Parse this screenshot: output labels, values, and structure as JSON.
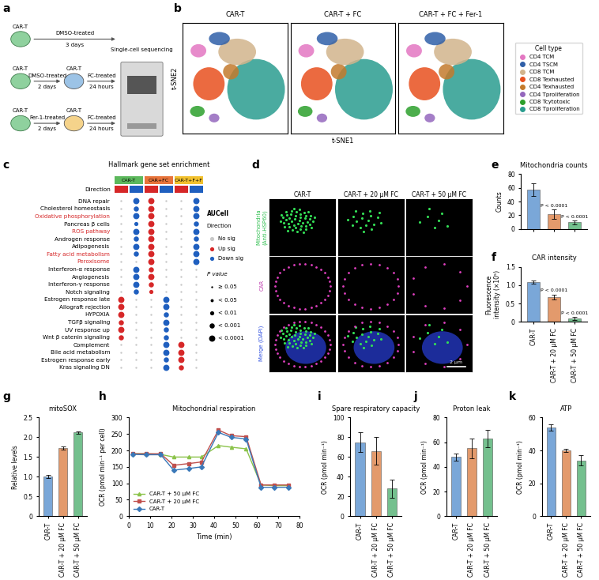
{
  "schematic": {
    "panel": "a",
    "rows": [
      {
        "start": "CAR-T",
        "first": {
          "treatment": "DMSO-treated",
          "duration": "3 days"
        }
      },
      {
        "start": "CAR-T",
        "first": {
          "treatment": "DMSO-treated",
          "duration": "2 days"
        },
        "middle": "CAR-T",
        "second": {
          "treatment": "FC-treated",
          "duration": "24 hours"
        }
      },
      {
        "start": "CAR-T",
        "first": {
          "treatment": "Fer-1-treated",
          "duration": "2 days"
        },
        "middle": "CAR-T",
        "second": {
          "treatment": "FC-treated",
          "duration": "24 hours"
        }
      }
    ],
    "output": "Single-cell sequencing"
  },
  "tsne": {
    "panel": "b",
    "type": "scatter",
    "titles": [
      "CAR-T",
      "CAR-T + FC",
      "CAR-T + FC + Fer-1"
    ],
    "xlabel": "t-SNE1",
    "ylabel": "t-SNE2",
    "xlim": [
      -50,
      50
    ],
    "ylim": [
      -50,
      50
    ],
    "tick_labels": false,
    "legend_title": "Cell type",
    "clusters": [
      {
        "name": "CD4 TCM",
        "color": "#e377c2",
        "x": -35,
        "y": 25,
        "width": 15,
        "height": 12
      },
      {
        "name": "CD4 TSCM",
        "color": "#2f5fa8",
        "x": -15,
        "y": 36,
        "width": 20,
        "height": 12
      },
      {
        "name": "CD8 TCM",
        "color": "#d2b48c",
        "x": 2,
        "y": 24,
        "width": 36,
        "height": 24
      },
      {
        "name": "CD8 Texhausted",
        "color": "#e8501e",
        "x": -25,
        "y": -5,
        "width": 30,
        "height": 30
      },
      {
        "name": "CD4 Texhausted",
        "color": "#c47a2c",
        "x": -4,
        "y": 6,
        "width": 15,
        "height": 14
      },
      {
        "name": "CD4 Tproliferation",
        "color": "#9467bd",
        "x": -20,
        "y": -36,
        "width": 10,
        "height": 8
      },
      {
        "name": "CD8 Tcytotoxic",
        "color": "#2ca02c",
        "x": -36,
        "y": -30,
        "width": 14,
        "height": 10
      },
      {
        "name": "CD8 Tproliferation",
        "color": "#2a9d8f",
        "x": 20,
        "y": -10,
        "width": 55,
        "height": 55
      }
    ]
  },
  "dot_plot": {
    "panel": "c",
    "title": "Hallmark gene set enrichment",
    "groups": [
      {
        "name": "CAR-T",
        "color": "#5cb85c"
      },
      {
        "name": "CAR+FC",
        "color": "#e8743b"
      },
      {
        "name": "CAR-T+F+F",
        "color": "#f2c12e"
      }
    ],
    "direction_label": "Direction",
    "column_directions": [
      1,
      2,
      1,
      2,
      1,
      2
    ],
    "legend_title": "AUCell",
    "directions": [
      {
        "name": "No sig",
        "color": "#c8c8c8"
      },
      {
        "name": "Up sig",
        "color": "#d62728"
      },
      {
        "name": "Down sig",
        "color": "#1f5fbf"
      }
    ],
    "p_value_title": "P value",
    "p_levels": [
      "≥ 0.05",
      "< 0.05",
      "< 0.01",
      "< 0.001",
      "< 0.0001"
    ],
    "rows": [
      {
        "label": "DNA repair",
        "color": "#000000"
      },
      {
        "label": "Cholesterol homeostasis",
        "color": "#000000"
      },
      {
        "label": "Oxidative phosphorylation",
        "color": "#d62728"
      },
      {
        "label": "Pancreas β cells",
        "color": "#000000"
      },
      {
        "label": "ROS pathway",
        "color": "#d62728"
      },
      {
        "label": "Androgen response",
        "color": "#000000"
      },
      {
        "label": "Adipogenesis",
        "color": "#000000"
      },
      {
        "label": "Fatty acid metabolism",
        "color": "#d62728"
      },
      {
        "label": "Peroxisome",
        "color": "#d62728"
      },
      {
        "label": "Interferon-α response",
        "color": "#000000"
      },
      {
        "label": "Angiogenesis",
        "color": "#000000"
      },
      {
        "label": "Interferon-γ response",
        "color": "#000000"
      },
      {
        "label": "Notch signaling",
        "color": "#000000"
      },
      {
        "label": "Estrogen response late",
        "color": "#000000"
      },
      {
        "label": "Allograft rejection",
        "color": "#000000"
      },
      {
        "label": "HYPOXIA",
        "color": "#000000"
      },
      {
        "label": "TGFβ signaling",
        "color": "#000000"
      },
      {
        "label": "UV response up",
        "color": "#000000"
      },
      {
        "label": "Wnt β catenin signaling",
        "color": "#000000"
      },
      {
        "label": "Complement",
        "color": "#000000"
      },
      {
        "label": "Bile acid metabolism",
        "color": "#000000"
      },
      {
        "label": "Estrogen response early",
        "color": "#000000"
      },
      {
        "label": "Kras signaling DN",
        "color": "#000000"
      }
    ],
    "cell_directions": [
      [
        0,
        2,
        1,
        0,
        0,
        2
      ],
      [
        0,
        2,
        1,
        0,
        0,
        2
      ],
      [
        0,
        2,
        1,
        0,
        0,
        2
      ],
      [
        0,
        2,
        1,
        0,
        0,
        2
      ],
      [
        0,
        2,
        1,
        0,
        0,
        2
      ],
      [
        0,
        2,
        1,
        0,
        0,
        2
      ],
      [
        0,
        2,
        1,
        0,
        0,
        2
      ],
      [
        0,
        2,
        1,
        0,
        0,
        2
      ],
      [
        0,
        0,
        1,
        0,
        0,
        2
      ],
      [
        0,
        2,
        1,
        0,
        0,
        0
      ],
      [
        0,
        2,
        1,
        0,
        0,
        0
      ],
      [
        0,
        2,
        1,
        0,
        0,
        0
      ],
      [
        0,
        2,
        1,
        0,
        0,
        0
      ],
      [
        1,
        0,
        0,
        2,
        0,
        0
      ],
      [
        1,
        0,
        0,
        2,
        0,
        0
      ],
      [
        1,
        0,
        0,
        2,
        0,
        0
      ],
      [
        1,
        0,
        0,
        2,
        0,
        0
      ],
      [
        1,
        0,
        0,
        2,
        0,
        0
      ],
      [
        1,
        0,
        0,
        2,
        0,
        0
      ],
      [
        0,
        0,
        0,
        2,
        1,
        0
      ],
      [
        0,
        0,
        0,
        2,
        1,
        0
      ],
      [
        0,
        0,
        0,
        2,
        1,
        0
      ],
      [
        0,
        0,
        0,
        2,
        1,
        0
      ]
    ],
    "cell_p_levels": [
      [
        0,
        4,
        4,
        0,
        0,
        4
      ],
      [
        0,
        3,
        4,
        0,
        0,
        4
      ],
      [
        0,
        4,
        4,
        0,
        0,
        4
      ],
      [
        0,
        2,
        4,
        0,
        0,
        3
      ],
      [
        0,
        4,
        4,
        0,
        0,
        4
      ],
      [
        0,
        3,
        4,
        0,
        0,
        3
      ],
      [
        0,
        4,
        4,
        0,
        0,
        4
      ],
      [
        0,
        3,
        4,
        0,
        0,
        4
      ],
      [
        0,
        0,
        4,
        0,
        0,
        4
      ],
      [
        0,
        4,
        3,
        0,
        0,
        0
      ],
      [
        0,
        4,
        4,
        0,
        0,
        0
      ],
      [
        0,
        4,
        3,
        0,
        0,
        0
      ],
      [
        0,
        3,
        2,
        0,
        0,
        0
      ],
      [
        4,
        0,
        0,
        4,
        0,
        0
      ],
      [
        4,
        0,
        0,
        4,
        0,
        0
      ],
      [
        4,
        0,
        0,
        3,
        0,
        0
      ],
      [
        3,
        0,
        0,
        4,
        0,
        0
      ],
      [
        4,
        0,
        0,
        3,
        0,
        0
      ],
      [
        3,
        0,
        0,
        3,
        0,
        0
      ],
      [
        0,
        0,
        0,
        4,
        4,
        0
      ],
      [
        0,
        0,
        0,
        4,
        4,
        0
      ],
      [
        0,
        0,
        0,
        3,
        4,
        0
      ],
      [
        0,
        0,
        0,
        4,
        3,
        0
      ]
    ]
  },
  "microscopy": {
    "panel": "d",
    "columns": [
      "CAR-T",
      "CAR-T + 20 μM FC",
      "CAR-T + 50 μM FC"
    ],
    "rows": [
      {
        "label": "Mitochondria\n(Anti-HSP60)",
        "color": "#2fbf4f"
      },
      {
        "label": "CAR",
        "color": "#c040b0"
      },
      {
        "label": "Merge (DAPI)",
        "color": "#3050e0"
      }
    ],
    "scale_bar": "2 μm"
  },
  "chart_data": [
    {
      "panel": "e",
      "type": "bar",
      "title": "Mitochondria counts",
      "ylabel": "Counts",
      "categories": [
        "CAR-T",
        "CAR-T + 20 μM FC",
        "CAR-T + 50 μM FC"
      ],
      "values": [
        57,
        22,
        10
      ],
      "errors": [
        9,
        7,
        3
      ],
      "colors": [
        "#7aa7d8",
        "#e39a6c",
        "#74c08e"
      ],
      "ylim": [
        0,
        80
      ],
      "yticks": [
        0,
        20,
        40,
        60,
        80
      ],
      "tick_labels": "y",
      "annotations": [
        null,
        "P < 0.0001",
        "P < 0.0001"
      ]
    },
    {
      "panel": "f",
      "type": "bar",
      "title": "CAR intensity",
      "ylabel": "Fluorescence\nintensity (×10⁵)",
      "categories": [
        "CAR-T",
        "CAR-T + 20 μM FC",
        "CAR-T + 50 μM FC"
      ],
      "values": [
        1.08,
        0.68,
        0.1
      ],
      "errors": [
        0.05,
        0.07,
        0.04
      ],
      "colors": [
        "#7aa7d8",
        "#e39a6c",
        "#74c08e"
      ],
      "ylim": [
        0,
        1.5
      ],
      "yticks": [
        0,
        0.5,
        {
          "value": 1,
          "label": "1.0"
        },
        1.5
      ],
      "annotations": [
        null,
        "P < 0.0001",
        "P < 0.0001"
      ]
    },
    {
      "panel": "g",
      "type": "bar",
      "title": "mitoSOX",
      "ylabel": "Relative levels",
      "categories": [
        "CAR-T",
        "CAR-T + 20 μM FC",
        "CAR-T + 50 μM FC"
      ],
      "values": [
        1.0,
        1.72,
        2.12
      ],
      "errors": [
        0.04,
        0.04,
        0.03
      ],
      "colors": [
        "#7aa7d8",
        "#e39a6c",
        "#74c08e"
      ],
      "ylim": [
        0,
        2.5
      ],
      "yticks": [
        0,
        0.5,
        {
          "value": 1,
          "label": "1.0"
        },
        1.5,
        {
          "value": 2,
          "label": "2.0"
        },
        2.5
      ]
    },
    {
      "panel": "h",
      "type": "line",
      "title": "Mitochondrial respiration",
      "xlabel": "Time (min)",
      "ylabel": "OCR (pmol min⁻¹ per cell)",
      "x": [
        2,
        8,
        15,
        21,
        28,
        34,
        42,
        48,
        55,
        62,
        68,
        75
      ],
      "series": [
        {
          "name": "CAR-T + 50 μM FC",
          "color": "#8bc34a",
          "marker": "triangle",
          "values": [
            190,
            190,
            188,
            180,
            180,
            180,
            215,
            210,
            205,
            95,
            93,
            93
          ]
        },
        {
          "name": "CAR-T + 20 μM FC",
          "color": "#c0504d",
          "marker": "square",
          "values": [
            190,
            190,
            190,
            155,
            160,
            165,
            262,
            245,
            242,
            95,
            95,
            95
          ]
        },
        {
          "name": "CAR-T",
          "color": "#3a78b8",
          "marker": "diamond",
          "values": [
            188,
            187,
            187,
            140,
            145,
            150,
            255,
            240,
            235,
            88,
            88,
            88
          ]
        }
      ],
      "xlim": [
        0,
        80
      ],
      "xticks": [
        0,
        10,
        20,
        30,
        40,
        50,
        60,
        70,
        80
      ],
      "ylim": [
        0,
        300
      ],
      "yticks": [
        0,
        50,
        100,
        150,
        200,
        250,
        300
      ],
      "legend": "lower left"
    },
    {
      "panel": "i",
      "type": "bar",
      "title": "Spare respiratory capacity",
      "ylabel": "OCR (pmol min⁻¹)",
      "categories": [
        "CAR-T",
        "CAR-T + 20 μM FC",
        "CAR-T + 50 μM FC"
      ],
      "values": [
        75,
        66,
        28
      ],
      "errors": [
        10,
        14,
        9
      ],
      "colors": [
        "#7aa7d8",
        "#e39a6c",
        "#74c08e"
      ],
      "ylim": [
        0,
        100
      ],
      "yticks": [
        0,
        20,
        40,
        60,
        80,
        100
      ]
    },
    {
      "panel": "j",
      "type": "bar",
      "title": "Proton leak",
      "ylabel": "OCR (pmol min⁻¹)",
      "categories": [
        "CAR-T",
        "CAR-T + 20 μM FC",
        "CAR-T + 50 μM FC"
      ],
      "values": [
        48,
        55,
        63
      ],
      "errors": [
        3,
        8,
        7
      ],
      "colors": [
        "#7aa7d8",
        "#e39a6c",
        "#74c08e"
      ],
      "ylim": [
        0,
        80
      ],
      "yticks": [
        0,
        20,
        40,
        60,
        80
      ]
    },
    {
      "panel": "k",
      "type": "bar",
      "title": "ATP",
      "ylabel": "OCR (pmol min⁻¹)",
      "categories": [
        "CAR-T",
        "CAR-T + 20 μM FC",
        "CAR-T + 50 μM FC"
      ],
      "values": [
        54,
        40,
        34
      ],
      "errors": [
        2,
        1,
        3
      ],
      "colors": [
        "#7aa7d8",
        "#e39a6c",
        "#74c08e"
      ],
      "ylim": [
        0,
        60
      ],
      "yticks": [
        0,
        20,
        40,
        60
      ]
    }
  ]
}
